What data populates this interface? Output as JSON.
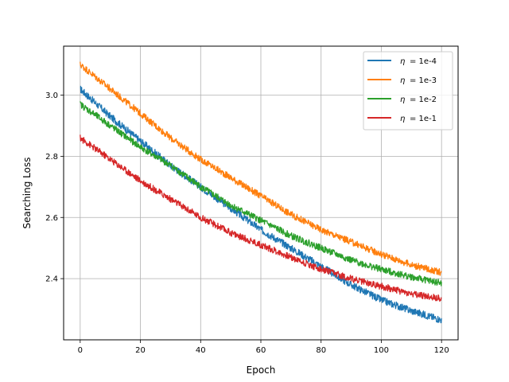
{
  "chart_data": {
    "type": "line",
    "title": "",
    "xlabel": "Epoch",
    "ylabel": "Searching Loss",
    "xlim": [
      -5.5,
      125.5
    ],
    "ylim": [
      2.2,
      3.16
    ],
    "x_ticks": [
      0,
      20,
      40,
      60,
      80,
      100,
      120
    ],
    "y_ticks": [
      2.4,
      2.6,
      2.8,
      3.0
    ],
    "x_tick_labels": [
      "0",
      "20",
      "40",
      "60",
      "80",
      "100",
      "120"
    ],
    "y_tick_labels": [
      "2.4",
      "2.6",
      "2.8",
      "3.0"
    ],
    "grid": true,
    "legend_position": "top-right",
    "series": [
      {
        "name": "η = 1e-4",
        "legend_symbol": "η",
        "legend_value": "= 1e-4",
        "color": "#1f77b4",
        "x": [
          0,
          10,
          20,
          30,
          40,
          50,
          60,
          70,
          80,
          90,
          100,
          110,
          120
        ],
        "values": [
          3.02,
          2.93,
          2.85,
          2.77,
          2.7,
          2.63,
          2.56,
          2.5,
          2.44,
          2.38,
          2.33,
          2.295,
          2.265
        ],
        "noise": 0.012
      },
      {
        "name": "η = 1e-3",
        "legend_symbol": "η",
        "legend_value": "= 1e-3",
        "color": "#ff7f0e",
        "x": [
          0,
          10,
          20,
          30,
          40,
          50,
          60,
          70,
          80,
          90,
          100,
          110,
          120
        ],
        "values": [
          3.1,
          3.02,
          2.94,
          2.86,
          2.79,
          2.73,
          2.67,
          2.61,
          2.56,
          2.52,
          2.48,
          2.445,
          2.42
        ],
        "noise": 0.011
      },
      {
        "name": "η = 1e-2",
        "legend_symbol": "η",
        "legend_value": "= 1e-2",
        "color": "#2ca02c",
        "x": [
          0,
          10,
          20,
          30,
          40,
          50,
          60,
          70,
          80,
          90,
          100,
          110,
          120
        ],
        "values": [
          2.97,
          2.9,
          2.83,
          2.77,
          2.7,
          2.64,
          2.59,
          2.54,
          2.5,
          2.46,
          2.43,
          2.405,
          2.385
        ],
        "noise": 0.011
      },
      {
        "name": "η = 1e-1",
        "legend_symbol": "η",
        "legend_value": "= 1e-1",
        "color": "#d62728",
        "x": [
          0,
          10,
          20,
          30,
          40,
          50,
          60,
          70,
          80,
          90,
          100,
          110,
          120
        ],
        "values": [
          2.86,
          2.79,
          2.72,
          2.66,
          2.6,
          2.55,
          2.51,
          2.47,
          2.43,
          2.4,
          2.375,
          2.35,
          2.335
        ],
        "noise": 0.011
      }
    ]
  }
}
